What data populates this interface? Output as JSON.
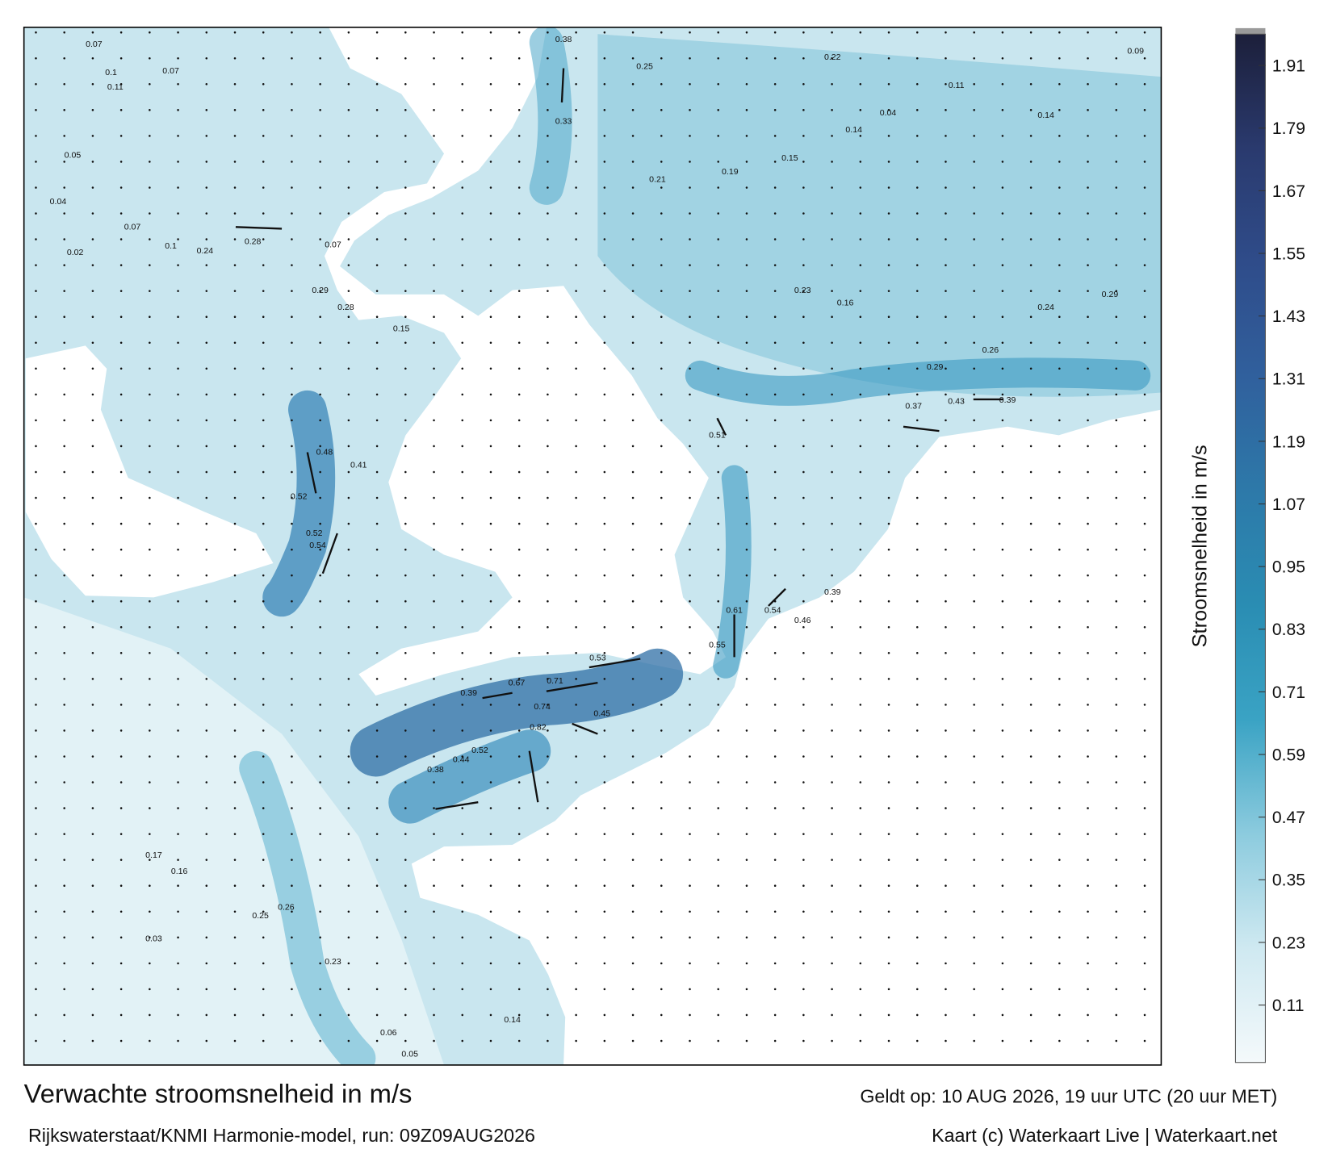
{
  "title": "Verwachte stroomsnelheid in m/s",
  "valid_time": "Geldt op: 10 AUG 2026, 19 uur UTC (20 uur MET)",
  "source": "Rijkswaterstaat/KNMI Harmonie-model, run: 09Z09AUG2026",
  "credit": "Kaart (c) Waterkaart Live | Waterkaart.net",
  "colorbar": {
    "label": "Stroomsnelheid in m/s",
    "range": [
      0,
      1.97
    ],
    "ticks": [
      0.11,
      0.23,
      0.35,
      0.47,
      0.59,
      0.71,
      0.83,
      0.95,
      1.07,
      1.19,
      1.31,
      1.43,
      1.55,
      1.67,
      1.79,
      1.91
    ],
    "colors": [
      "#f4f9fb",
      "#cfe9f1",
      "#8ccbde",
      "#3aa3c4",
      "#2a8db3",
      "#2d79a9",
      "#30609d",
      "#2f4c8a",
      "#2a3a6e",
      "#1c1f3a"
    ]
  },
  "current_labels": [
    0.07,
    0.1,
    0.07,
    0.11,
    0.05,
    0.04,
    0.07,
    0.02,
    0.1,
    0.24,
    0.28,
    0.07,
    0.29,
    0.28,
    0.15,
    0.48,
    0.41,
    0.52,
    0.52,
    0.54,
    0.38,
    0.25,
    0.33,
    0.21,
    0.19,
    0.15,
    0.14,
    0.26,
    0.29,
    0.37,
    0.43,
    0.39,
    0.51,
    0.67,
    0.71,
    0.74,
    0.82,
    0.45,
    0.39,
    0.38,
    0.44,
    0.52,
    0.53,
    0.55,
    0.61,
    0.54,
    0.46,
    0.39,
    0.23,
    0.26,
    0.25,
    0.16,
    0.17,
    0.14,
    0.05,
    0.06,
    0.03,
    0.29,
    0.24,
    0.23,
    0.16,
    0.09,
    0.11,
    0.14,
    0.04,
    0.22
  ]
}
